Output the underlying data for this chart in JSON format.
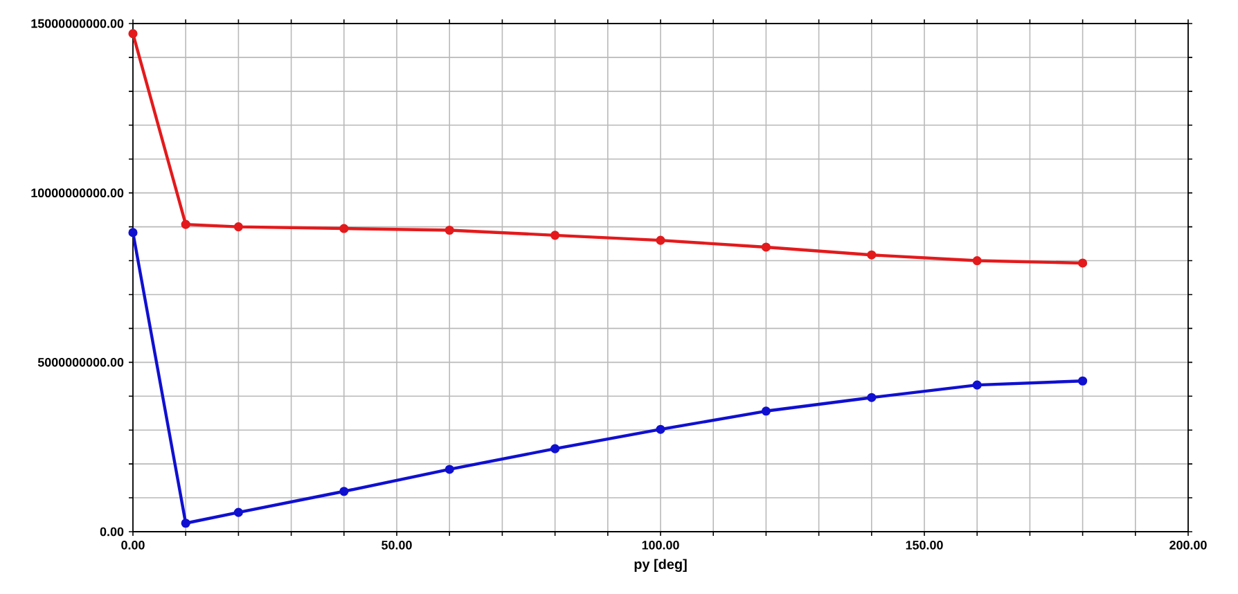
{
  "chart_data": {
    "type": "line",
    "xlabel": "py [deg]",
    "x": [
      0,
      10,
      20,
      40,
      60,
      80,
      100,
      120,
      140,
      160,
      180
    ],
    "series": [
      {
        "color": "#e31a1c",
        "values": [
          14700000000,
          9070000000,
          9000000000,
          8950000000,
          8900000000,
          8750000000,
          8600000000,
          8400000000,
          8170000000,
          8000000000,
          7930000000
        ]
      },
      {
        "color": "#1010d0",
        "values": [
          8830000000,
          250000000,
          570000000,
          1190000000,
          1840000000,
          2450000000,
          3020000000,
          3560000000,
          3960000000,
          4330000000,
          4450000000
        ]
      }
    ],
    "xlim": [
      0,
      200
    ],
    "xticks": [
      {
        "value": 0,
        "label": "0.00"
      },
      {
        "value": 10,
        "label": null
      },
      {
        "value": 20,
        "label": null
      },
      {
        "value": 30,
        "label": null
      },
      {
        "value": 40,
        "label": null
      },
      {
        "value": 50,
        "label": "50.00"
      },
      {
        "value": 60,
        "label": null
      },
      {
        "value": 70,
        "label": null
      },
      {
        "value": 80,
        "label": null
      },
      {
        "value": 90,
        "label": null
      },
      {
        "value": 100,
        "label": "100.00"
      },
      {
        "value": 110,
        "label": null
      },
      {
        "value": 120,
        "label": null
      },
      {
        "value": 130,
        "label": null
      },
      {
        "value": 140,
        "label": null
      },
      {
        "value": 150,
        "label": "150.00"
      },
      {
        "value": 160,
        "label": null
      },
      {
        "value": 170,
        "label": null
      },
      {
        "value": 180,
        "label": null
      },
      {
        "value": 190,
        "label": null
      },
      {
        "value": 200,
        "label": "200.00"
      }
    ],
    "ylim": [
      0,
      15000000000
    ],
    "yticks": [
      {
        "value": 0,
        "label": "0.00"
      },
      {
        "value": 1000000000,
        "label": null
      },
      {
        "value": 2000000000,
        "label": null
      },
      {
        "value": 3000000000,
        "label": null
      },
      {
        "value": 4000000000,
        "label": null
      },
      {
        "value": 5000000000,
        "label": "5000000000.00"
      },
      {
        "value": 6000000000,
        "label": null
      },
      {
        "value": 7000000000,
        "label": null
      },
      {
        "value": 8000000000,
        "label": null
      },
      {
        "value": 9000000000,
        "label": null
      },
      {
        "value": 10000000000,
        "label": "10000000000.00"
      },
      {
        "value": 11000000000,
        "label": null
      },
      {
        "value": 12000000000,
        "label": null
      },
      {
        "value": 13000000000,
        "label": null
      },
      {
        "value": 14000000000,
        "label": null
      },
      {
        "value": 15000000000,
        "label": "15000000000.00"
      }
    ],
    "grid": true,
    "marker": "circle",
    "line_style": "solid"
  }
}
